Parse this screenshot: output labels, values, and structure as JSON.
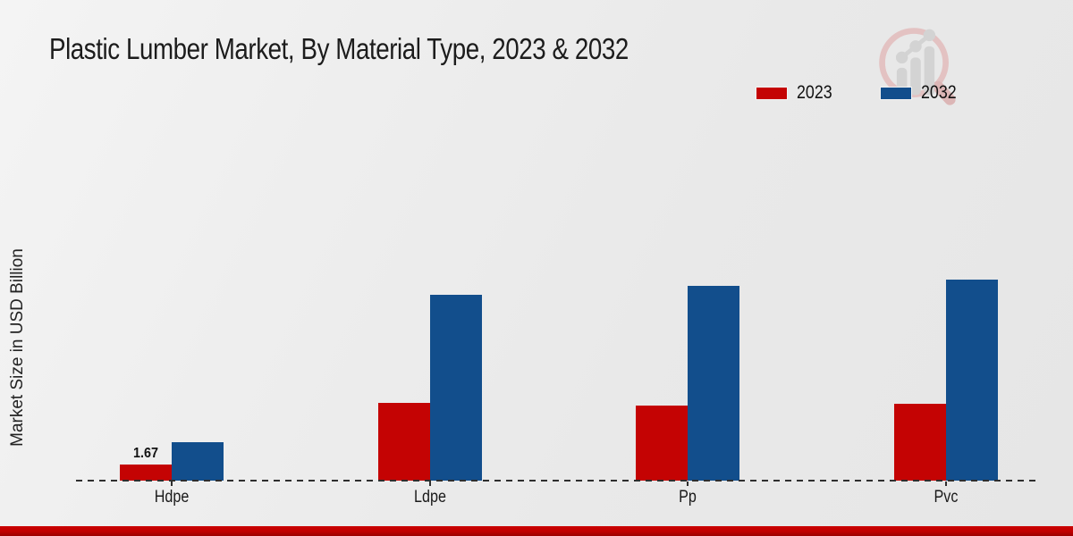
{
  "page": {
    "footer_accent_color": "#c00000",
    "background_color": "#ebebeb"
  },
  "legend": {
    "items": [
      {
        "label": "2023",
        "color": "#c40303"
      },
      {
        "label": "2032",
        "color": "#124e8c"
      }
    ]
  },
  "watermark": {
    "icon": "magnifier-growth-chart-logo"
  },
  "chart_data": {
    "type": "bar",
    "title": "Plastic Lumber Market, By Material Type, 2023 & 2032",
    "categories": [
      "Hdpe",
      "Ldpe",
      "Pp",
      "Pvc"
    ],
    "series": [
      {
        "name": "2023",
        "color": "#c40303",
        "values": [
          1.67,
          7.9,
          7.6,
          7.8
        ]
      },
      {
        "name": "2032",
        "color": "#124e8c",
        "values": [
          3.9,
          18.9,
          19.8,
          20.5
        ]
      }
    ],
    "xlabel": "",
    "ylabel": "Market Size in USD Billion",
    "ylim": [
      0,
      24
    ],
    "grid": false,
    "y_axis_ticks_visible": false,
    "legend_position": "top-right",
    "baseline_style": "dashed",
    "data_labels": [
      {
        "series": "2023",
        "category": "Hdpe",
        "text": "1.67"
      }
    ]
  }
}
